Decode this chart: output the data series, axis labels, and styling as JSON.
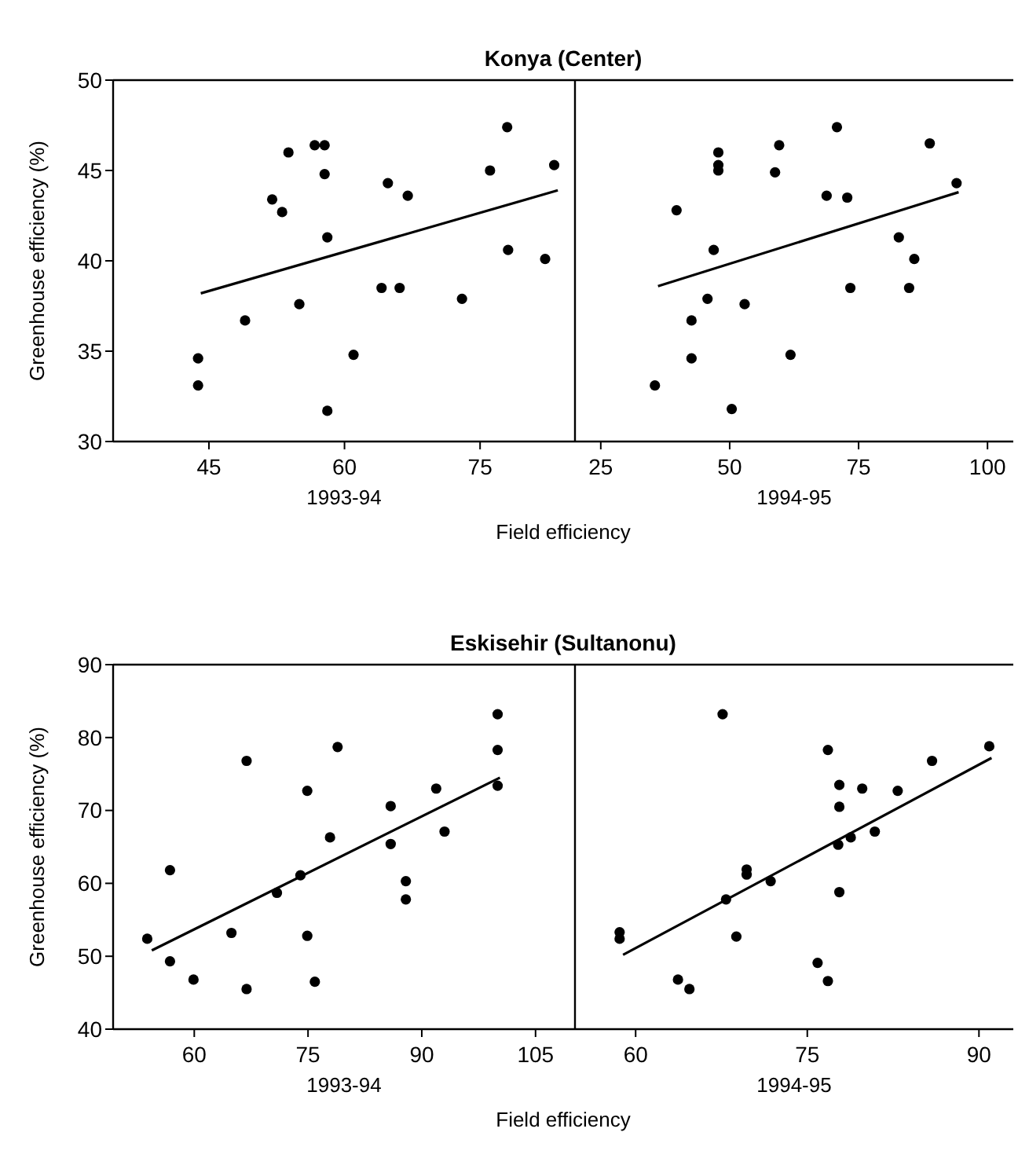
{
  "chart_data": [
    {
      "type": "scatter",
      "title": "Konya (Center)",
      "xlabel": "1993-94",
      "ylabel": "Greenhouse efficiency (%)",
      "annotations": [
        "Field efficiency"
      ],
      "xlim": [
        34.4,
        85.5
      ],
      "xticks": [
        45,
        60,
        75
      ],
      "ylim": [
        30,
        50
      ],
      "yticks": [
        30,
        35,
        40,
        45,
        50
      ],
      "series": [
        {
          "color": "#000000",
          "x": [
            43.8,
            43.8,
            49.0,
            52.0,
            53.1,
            53.8,
            55.0,
            56.7,
            57.8,
            57.8,
            58.1,
            58.1,
            61.0,
            64.1,
            64.8,
            66.1,
            67.0,
            73.0,
            76.1,
            78.0,
            78.1,
            82.2,
            83.2
          ],
          "values": [
            34.6,
            33.1,
            36.7,
            43.4,
            42.7,
            46.0,
            37.6,
            46.4,
            46.4,
            44.8,
            41.3,
            31.7,
            34.8,
            38.5,
            44.3,
            38.5,
            43.6,
            37.9,
            45.0,
            47.4,
            40.6,
            40.1,
            45.3
          ]
        },
        {
          "type": "line",
          "color": "#000000",
          "x": [
            44.1,
            83.6
          ],
          "values": [
            38.2,
            43.9
          ]
        }
      ]
    },
    {
      "type": "scatter",
      "xlabel": "1994-95",
      "xlim": [
        20,
        105
      ],
      "xticks": [
        25,
        50,
        75,
        100
      ],
      "ylim": [
        30,
        50
      ],
      "tick_labels": "x",
      "series": [
        {
          "color": "#000000",
          "x": [
            35.5,
            39.7,
            42.6,
            42.6,
            45.7,
            46.9,
            47.8,
            47.8,
            47.8,
            50.4,
            52.9,
            58.8,
            59.6,
            61.8,
            68.8,
            70.8,
            72.8,
            73.4,
            82.8,
            84.8,
            85.8,
            88.8,
            94.0
          ],
          "values": [
            33.1,
            42.8,
            36.7,
            34.6,
            37.9,
            40.6,
            46.0,
            45.3,
            45.0,
            31.8,
            37.6,
            44.9,
            46.4,
            34.8,
            43.6,
            47.4,
            43.5,
            38.5,
            41.3,
            38.5,
            40.1,
            46.5,
            44.3
          ]
        },
        {
          "type": "line",
          "color": "#000000",
          "x": [
            36.1,
            94.4
          ],
          "values": [
            38.6,
            43.8
          ]
        }
      ]
    },
    {
      "type": "scatter",
      "title": "Eskisehir (Sultanonu)",
      "xlabel": "1993-94",
      "ylabel": "Greenhouse efficiency (%)",
      "annotations": [
        "Field efficiency"
      ],
      "xlim": [
        49.3,
        110.2
      ],
      "xticks": [
        60,
        75,
        90,
        105
      ],
      "ylim": [
        40,
        90
      ],
      "yticks": [
        40,
        50,
        60,
        70,
        80,
        90
      ],
      "series": [
        {
          "color": "#000000",
          "x": [
            53.8,
            56.8,
            56.8,
            59.9,
            64.9,
            66.9,
            66.9,
            70.9,
            74.0,
            74.9,
            74.9,
            75.9,
            77.9,
            78.9,
            85.9,
            85.9,
            87.9,
            87.9,
            91.9,
            93.0,
            100.0,
            100.0,
            100.0
          ],
          "values": [
            52.4,
            61.8,
            49.3,
            46.8,
            53.2,
            76.8,
            45.5,
            58.7,
            61.1,
            72.7,
            52.8,
            46.5,
            66.3,
            78.7,
            70.6,
            65.4,
            60.3,
            57.8,
            73.0,
            67.1,
            83.2,
            78.3,
            73.4
          ]
        },
        {
          "type": "line",
          "color": "#000000",
          "x": [
            54.4,
            100.3
          ],
          "values": [
            50.8,
            74.5
          ]
        }
      ]
    },
    {
      "type": "scatter",
      "xlabel": "1994-95",
      "xlim": [
        54.7,
        93
      ],
      "xticks": [
        60,
        75,
        90
      ],
      "ylim": [
        40,
        90
      ],
      "tick_labels": "x",
      "series": [
        {
          "color": "#000000",
          "x": [
            58.6,
            58.6,
            63.7,
            64.7,
            67.6,
            67.9,
            68.8,
            69.7,
            69.7,
            71.8,
            75.9,
            76.8,
            76.8,
            77.8,
            77.8,
            77.7,
            77.8,
            78.8,
            79.8,
            80.9,
            82.9,
            85.9,
            90.9
          ],
          "values": [
            53.3,
            52.4,
            46.8,
            45.5,
            83.2,
            57.8,
            52.7,
            61.9,
            61.2,
            60.3,
            49.1,
            78.3,
            46.6,
            73.5,
            70.5,
            65.3,
            58.8,
            66.3,
            73.0,
            67.1,
            72.7,
            76.8,
            78.8
          ]
        },
        {
          "type": "line",
          "color": "#000000",
          "x": [
            58.9,
            91.1
          ],
          "values": [
            50.2,
            77.2
          ]
        }
      ]
    }
  ]
}
